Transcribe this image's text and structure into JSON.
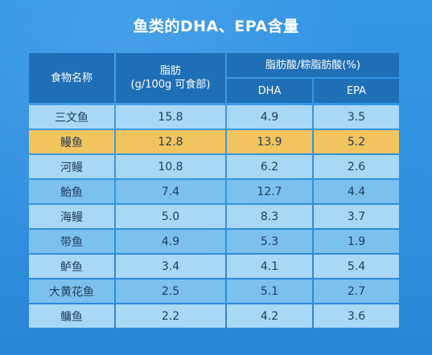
{
  "title": "鱼类的DHA、EPA含量",
  "table": {
    "header": {
      "name": "食物名称",
      "fat_line1": "脂肪",
      "fat_line2": "(g/100g 可食部)",
      "ratio": "脂肪酸/粽脂肪酸(%)",
      "dha": "DHA",
      "epa": "EPA"
    },
    "rows": [
      {
        "name": "三文鱼",
        "fat": "15.8",
        "dha": "4.9",
        "epa": "3.5"
      },
      {
        "name": "鳗鱼",
        "fat": "12.8",
        "dha": "13.9",
        "epa": "5.2",
        "highlight": true
      },
      {
        "name": "河鳗",
        "fat": "10.8",
        "dha": "6.2",
        "epa": "2.6"
      },
      {
        "name": "鲐鱼",
        "fat": "7.4",
        "dha": "12.7",
        "epa": "4.4"
      },
      {
        "name": "海鳗",
        "fat": "5.0",
        "dha": "8.3",
        "epa": "3.7"
      },
      {
        "name": "带鱼",
        "fat": "4.9",
        "dha": "5.3",
        "epa": "1.9"
      },
      {
        "name": "鲈鱼",
        "fat": "3.4",
        "dha": "4.1",
        "epa": "5.4"
      },
      {
        "name": "大黄花鱼",
        "fat": "2.5",
        "dha": "5.1",
        "epa": "2.7"
      },
      {
        "name": "鳙鱼",
        "fat": "2.2",
        "dha": "4.2",
        "epa": "3.6"
      }
    ]
  },
  "colors": {
    "header": "#1f6fb7",
    "row_light": "#a9d8f7",
    "row_dark": "#7cc0ee",
    "highlight": "#f2c45e"
  }
}
